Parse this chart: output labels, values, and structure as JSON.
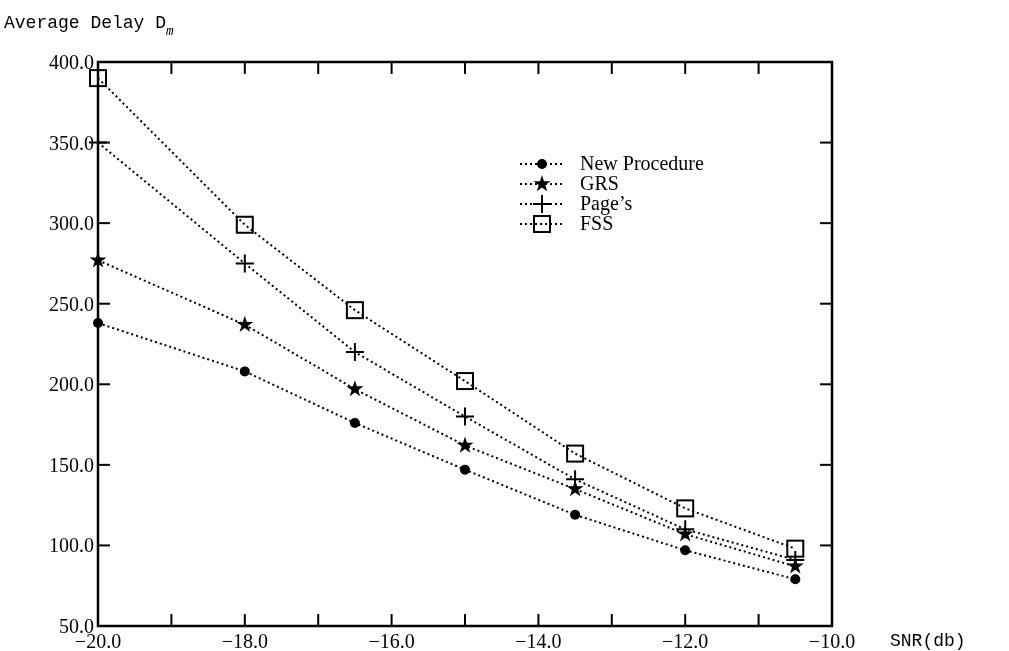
{
  "chart_data": {
    "type": "line",
    "xlabel": "SNR(db)",
    "ylabel": "Average Delay D$_{m}$",
    "x": [
      -20,
      -18,
      -16.5,
      -15,
      -13.5,
      -12,
      -10.5
    ],
    "series": [
      {
        "name": "New Procedure",
        "color": "#000000",
        "marker": "circle",
        "values": [
          238,
          208,
          176,
          147,
          119,
          97,
          79
        ]
      },
      {
        "name": "GRS",
        "color": "#000000",
        "marker": "star",
        "values": [
          277,
          237,
          197,
          162,
          135,
          107,
          87
        ]
      },
      {
        "name": "Page’s",
        "color": "#000000",
        "marker": "cross",
        "values": [
          350,
          275,
          220,
          180,
          141,
          110,
          91
        ]
      },
      {
        "name": "FSS",
        "color": "#000000",
        "marker": "square",
        "values": [
          390,
          299,
          246,
          202,
          157,
          123,
          98
        ]
      }
    ],
    "xlim": [
      -20,
      -10
    ],
    "xticks": [
      {
        "value": -20,
        "label": "−20.0"
      },
      {
        "value": -19,
        "label": null
      },
      {
        "value": -18,
        "label": "−18.0"
      },
      {
        "value": -17,
        "label": null
      },
      {
        "value": -16,
        "label": "−16.0"
      },
      {
        "value": -15,
        "label": null
      },
      {
        "value": -14,
        "label": "−14.0"
      },
      {
        "value": -13,
        "label": null
      },
      {
        "value": -12,
        "label": "−12.0"
      },
      {
        "value": -11,
        "label": null
      },
      {
        "value": -10,
        "label": "−10.0"
      }
    ],
    "ylim": [
      50,
      400
    ],
    "yticks": [
      {
        "value": 50,
        "label": "50.0"
      },
      {
        "value": 100,
        "label": "100.0"
      },
      {
        "value": 150,
        "label": "150.0"
      },
      {
        "value": 200,
        "label": "200.0"
      },
      {
        "value": 250,
        "label": "250.0"
      },
      {
        "value": 300,
        "label": "300.0"
      },
      {
        "value": 350,
        "label": "350.0"
      },
      {
        "value": 400,
        "label": "400.0"
      }
    ],
    "grid": false,
    "legend": "top right",
    "line_style": "dotted"
  }
}
